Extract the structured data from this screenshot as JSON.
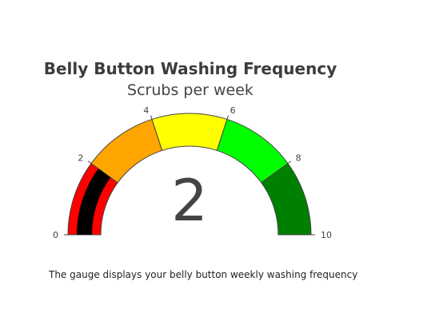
{
  "chart_data": {
    "type": "gauge",
    "title": "Belly Button Washing Frequency",
    "subtitle": "Scrubs per week",
    "value": 2,
    "range": [
      0,
      10
    ],
    "ticks": [
      0,
      2,
      4,
      6,
      8,
      10
    ],
    "steps": [
      {
        "range": [
          0,
          2
        ],
        "color": "#ff0000"
      },
      {
        "range": [
          2,
          4
        ],
        "color": "#ffa500"
      },
      {
        "range": [
          4,
          6
        ],
        "color": "#ffff00"
      },
      {
        "range": [
          6,
          8
        ],
        "color": "#00ff00"
      },
      {
        "range": [
          8,
          10
        ],
        "color": "#008000"
      }
    ],
    "bar_color": "#000000"
  },
  "caption": "The gauge displays your belly button weekly washing frequency"
}
